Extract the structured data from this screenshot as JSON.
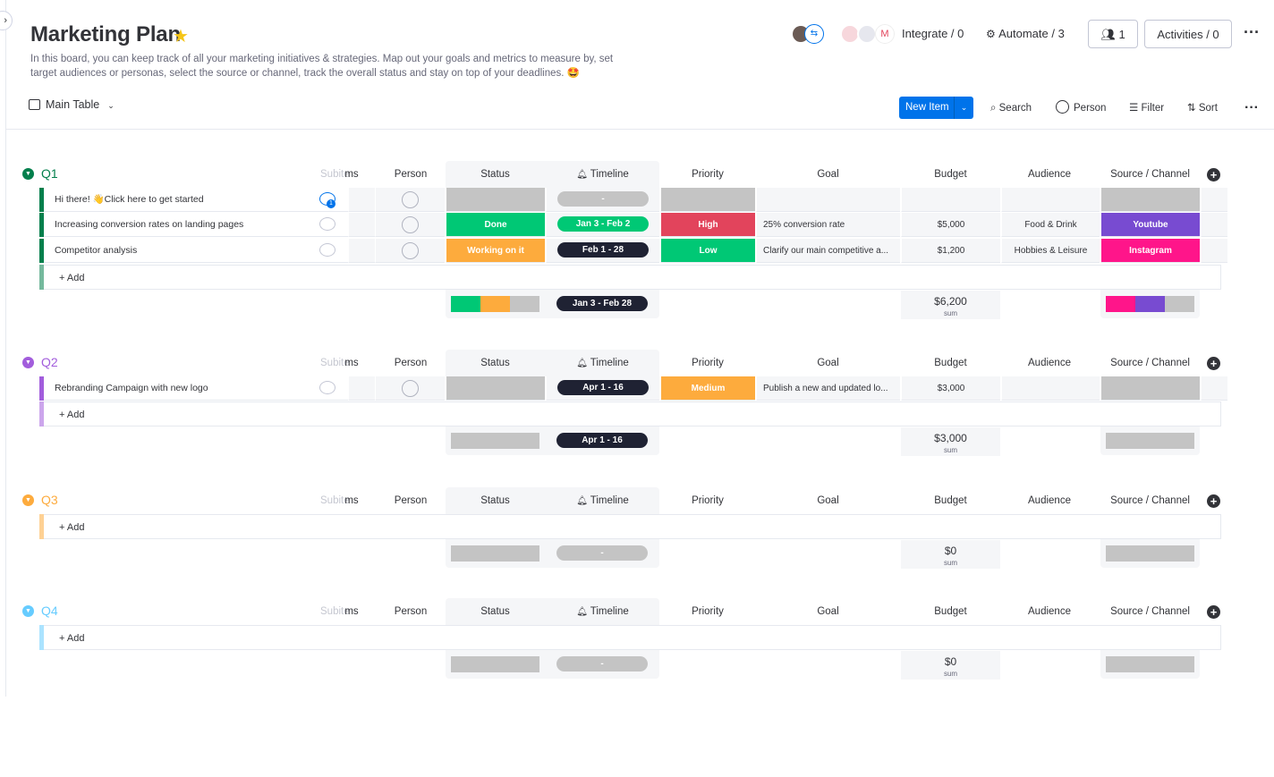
{
  "board": {
    "title": "Marketing Plan",
    "description": "In this board, you can keep track of all your marketing initiatives & strategies. Map out your goals and metrics to measure by, set target audiences or personas, select the source or channel, track the overall status and stay on top of your deadlines. 🤩",
    "integrate_label": "Integrate / 0",
    "automate_label": "Automate / 3",
    "members_label": "1",
    "activities_label": "Activities / 0"
  },
  "view": {
    "label": "Main Table"
  },
  "toolbar": {
    "new_item": "New Item",
    "search": "Search",
    "person": "Person",
    "filter": "Filter",
    "sort": "Sort"
  },
  "columns": {
    "subitems": "ms",
    "person": "Person",
    "status": "Status",
    "timeline": "Timeline",
    "priority": "Priority",
    "goal": "Goal",
    "budget": "Budget",
    "audience": "Audience",
    "source": "Source / Channel"
  },
  "add_label": "+ Add",
  "groups": [
    {
      "name": "Q1",
      "color": "#037f4c",
      "items": [
        {
          "name": "Hi there! 👋Click here to get started",
          "updates": "1",
          "status": "",
          "timeline": "-",
          "priority": "",
          "goal": "",
          "budget": "",
          "audience": "",
          "source": ""
        },
        {
          "name": "Increasing conversion rates on landing pages",
          "status": "Done",
          "timeline": "Jan 3 - Feb 2",
          "priority": "High",
          "goal": "25% conversion rate",
          "budget": "$5,000",
          "audience": "Food & Drink",
          "source": "Youtube"
        },
        {
          "name": "Competitor analysis",
          "status": "Working on it",
          "timeline": "Feb 1 - 28",
          "priority": "Low",
          "goal": "Clarify our main competitive a...",
          "budget": "$1,200",
          "audience": "Hobbies & Leisure",
          "source": "Instagram"
        }
      ],
      "summary": {
        "timeline": "Jan 3 - Feb 28",
        "budget": "$6,200",
        "budget_label": "sum"
      }
    },
    {
      "name": "Q2",
      "color": "#a25ddc",
      "items": [
        {
          "name": "Rebranding Campaign with new logo",
          "status": "",
          "timeline": "Apr 1 - 16",
          "priority": "Medium",
          "goal": "Publish a new and updated lo...",
          "budget": "$3,000",
          "audience": "",
          "source": ""
        }
      ],
      "summary": {
        "timeline": "Apr 1 - 16",
        "budget": "$3,000",
        "budget_label": "sum"
      }
    },
    {
      "name": "Q3",
      "color": "#fdab3d",
      "items": [],
      "summary": {
        "timeline": "-",
        "budget": "$0",
        "budget_label": "sum"
      }
    },
    {
      "name": "Q4",
      "color": "#66ccff",
      "items": [],
      "summary": {
        "timeline": "-",
        "budget": "$0",
        "budget_label": "sum"
      }
    }
  ],
  "colors": {
    "done": "#00c875",
    "working": "#fdab3d",
    "high": "#e2445c",
    "low": "#00c875",
    "medium": "#fdab3d",
    "youtube": "#784bd1",
    "instagram": "#ff158a",
    "empty": "#c4c4c4",
    "timeline_dark": "#1f2233",
    "primary": "#0073ea"
  }
}
